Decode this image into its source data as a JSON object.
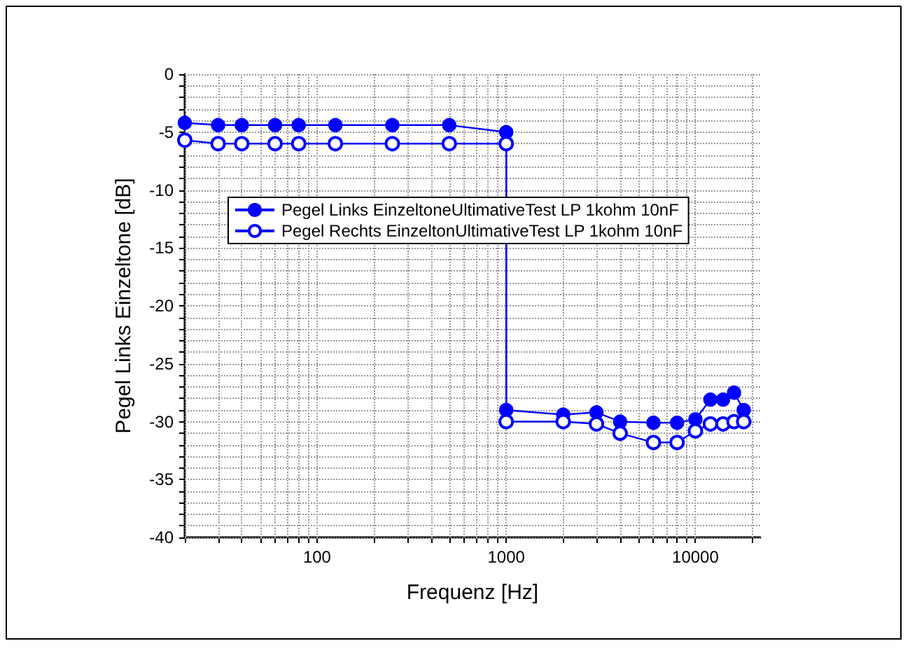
{
  "chart_data": {
    "type": "line",
    "xlabel": "Frequenz [Hz]",
    "ylabel": "Pegel Links Einzeltone [dB]",
    "x": [
      20,
      30,
      40,
      60,
      80,
      125,
      250,
      500,
      1000,
      1000,
      2000,
      3000,
      4000,
      6000,
      8000,
      10000,
      12000,
      14000,
      16000,
      18000
    ],
    "series": [
      {
        "name": "Pegel Links EinzeltoneUltimativeTest LP 1kohm 10nF",
        "color": "#0000ff",
        "values": [
          -4.2,
          -4.4,
          -4.4,
          -4.4,
          -4.4,
          -4.4,
          -4.4,
          -4.4,
          -5,
          -29,
          -29.4,
          -29.2,
          -30,
          -30.1,
          -30.1,
          -29.8,
          -28.1,
          -28.1,
          -27.5,
          -29
        ]
      },
      {
        "name": "Pegel Rechts EinzeltonUltimativeTest LP 1kohm 10nF",
        "color": "#0000ff",
        "values": [
          -5.7,
          -6,
          -6,
          -6,
          -6,
          -6,
          -6,
          -6,
          -6,
          -30,
          -30,
          -30.2,
          -31,
          -31.8,
          -31.8,
          -30.8,
          -30.2,
          -30.2,
          -30,
          -30
        ]
      }
    ],
    "log": "x",
    "xlim": [
      20,
      22000
    ],
    "xticks": [
      {
        "value": 20,
        "label": null
      },
      {
        "value": 30,
        "label": null
      },
      {
        "value": 40,
        "label": null
      },
      {
        "value": 50,
        "label": null
      },
      {
        "value": 60,
        "label": null
      },
      {
        "value": 70,
        "label": null
      },
      {
        "value": 80,
        "label": null
      },
      {
        "value": 90,
        "label": null
      },
      100,
      {
        "value": 200,
        "label": null
      },
      {
        "value": 300,
        "label": null
      },
      {
        "value": 400,
        "label": null
      },
      {
        "value": 500,
        "label": null
      },
      {
        "value": 600,
        "label": null
      },
      {
        "value": 700,
        "label": null
      },
      {
        "value": 800,
        "label": null
      },
      {
        "value": 900,
        "label": null
      },
      1000,
      {
        "value": 2000,
        "label": null
      },
      {
        "value": 3000,
        "label": null
      },
      {
        "value": 4000,
        "label": null
      },
      {
        "value": 5000,
        "label": null
      },
      {
        "value": 6000,
        "label": null
      },
      {
        "value": 7000,
        "label": null
      },
      {
        "value": 8000,
        "label": null
      },
      {
        "value": 9000,
        "label": null
      },
      10000,
      {
        "value": 20000,
        "label": null
      }
    ],
    "ylim": [
      -40,
      0
    ],
    "yticks": [
      -40,
      {
        "value": -39,
        "label": null
      },
      {
        "value": -38,
        "label": null
      },
      {
        "value": -37,
        "label": null
      },
      {
        "value": -36,
        "label": null
      },
      -35,
      {
        "value": -34,
        "label": null
      },
      {
        "value": -33,
        "label": null
      },
      {
        "value": -32,
        "label": null
      },
      {
        "value": -31,
        "label": null
      },
      -30,
      {
        "value": -29,
        "label": null
      },
      {
        "value": -28,
        "label": null
      },
      {
        "value": -27,
        "label": null
      },
      {
        "value": -26,
        "label": null
      },
      -25,
      {
        "value": -24,
        "label": null
      },
      {
        "value": -23,
        "label": null
      },
      {
        "value": -22,
        "label": null
      },
      {
        "value": -21,
        "label": null
      },
      -20,
      {
        "value": -19,
        "label": null
      },
      {
        "value": -18,
        "label": null
      },
      {
        "value": -17,
        "label": null
      },
      {
        "value": -16,
        "label": null
      },
      -15,
      {
        "value": -14,
        "label": null
      },
      {
        "value": -13,
        "label": null
      },
      {
        "value": -12,
        "label": null
      },
      {
        "value": -11,
        "label": null
      },
      -10,
      {
        "value": -9,
        "label": null
      },
      {
        "value": -8,
        "label": null
      },
      {
        "value": -7,
        "label": null
      },
      {
        "value": -6,
        "label": null
      },
      -5,
      {
        "value": -4,
        "label": null
      },
      {
        "value": -3,
        "label": null
      },
      {
        "value": -2,
        "label": null
      },
      {
        "value": -1,
        "label": null
      },
      0
    ],
    "grid": true,
    "legend": "top",
    "marker": "circle",
    "line_style": "solid"
  }
}
